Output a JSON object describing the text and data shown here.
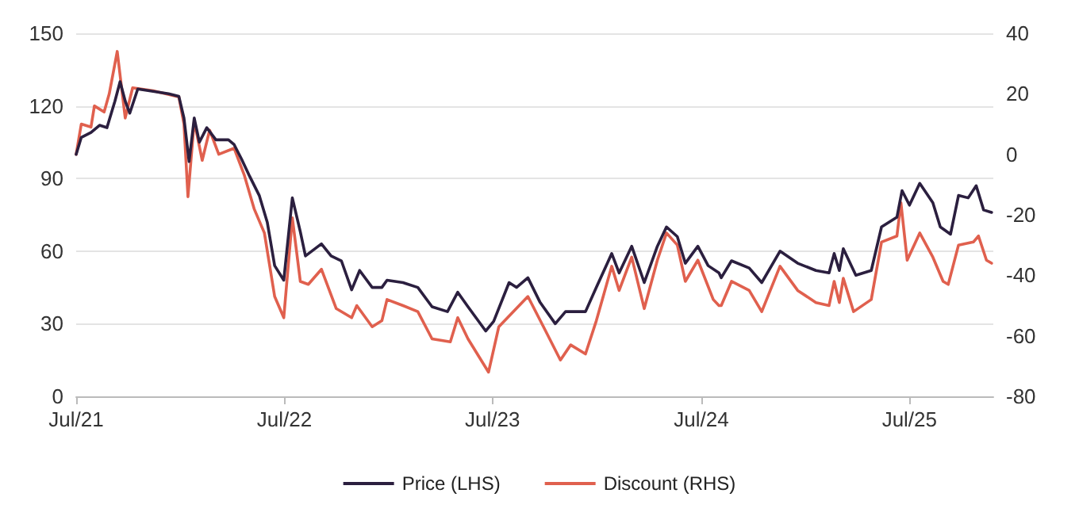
{
  "chart_data": {
    "type": "line",
    "xlim": [
      "2021-07-01",
      "2025-11-25"
    ],
    "xticks": [
      {
        "value": "2021-07-01",
        "label": "Jul/21"
      },
      {
        "value": "2022-07-01",
        "label": "Jul/22"
      },
      {
        "value": "2023-07-01",
        "label": "Jul/23"
      },
      {
        "value": "2024-07-01",
        "label": "Jul/24"
      },
      {
        "value": "2025-07-01",
        "label": "Jul/25"
      }
    ],
    "ylim": [
      0,
      150
    ],
    "yticks": [
      0,
      30,
      60,
      90,
      120,
      150
    ],
    "y2lim": [
      -80,
      40
    ],
    "y2ticks": [
      -80,
      -60,
      -40,
      -20,
      0,
      20,
      40
    ],
    "grid": "y",
    "legend": "bottom",
    "marker": "none",
    "line_style": "solid",
    "series": [
      {
        "name": "Price (LHS)",
        "color": "#2b1f3f",
        "x": [
          "2021-07-01",
          "2021-07-10",
          "2021-07-27",
          "2021-08-11",
          "2021-08-24",
          "2021-09-07",
          "2021-09-16",
          "2021-09-25",
          "2021-10-03",
          "2021-10-17",
          "2021-11-13",
          "2021-12-10",
          "2021-12-28",
          "2022-01-06",
          "2022-01-15",
          "2022-01-24",
          "2022-02-02",
          "2022-02-15",
          "2022-03-03",
          "2022-03-25",
          "2022-04-04",
          "2022-04-17",
          "2022-05-01",
          "2022-05-18",
          "2022-06-01",
          "2022-06-14",
          "2022-06-30",
          "2022-07-15",
          "2022-07-29",
          "2022-08-07",
          "2022-09-04",
          "2022-09-21",
          "2022-10-09",
          "2022-10-27",
          "2022-11-10",
          "2022-12-02",
          "2022-12-19",
          "2022-12-28",
          "2023-01-25",
          "2023-02-20",
          "2023-03-17",
          "2023-04-13",
          "2023-05-01",
          "2023-05-19",
          "2023-06-19",
          "2023-07-03",
          "2023-07-30",
          "2023-08-12",
          "2023-09-01",
          "2023-09-22",
          "2023-10-19",
          "2023-11-06",
          "2023-12-11",
          "2023-12-30",
          "2024-01-26",
          "2024-02-08",
          "2024-03-01",
          "2024-03-23",
          "2024-04-15",
          "2024-05-01",
          "2024-05-20",
          "2024-06-03",
          "2024-06-25",
          "2024-07-13",
          "2024-08-01",
          "2024-08-05",
          "2024-08-23",
          "2024-09-23",
          "2024-10-15",
          "2024-11-16",
          "2024-12-17",
          "2025-01-18",
          "2025-02-10",
          "2025-02-19",
          "2025-02-28",
          "2025-03-07",
          "2025-03-29",
          "2025-04-25",
          "2025-05-13",
          "2025-06-09",
          "2025-06-18",
          "2025-07-01",
          "2025-07-19",
          "2025-08-11",
          "2025-08-24",
          "2025-09-11",
          "2025-09-25",
          "2025-10-12",
          "2025-10-26",
          "2025-11-08",
          "2025-11-22"
        ],
        "values": [
          100,
          107,
          109,
          112,
          111,
          122,
          130,
          122,
          117,
          127,
          126,
          125,
          124,
          115,
          97,
          115,
          105,
          111,
          106,
          106,
          104,
          98,
          91,
          83,
          72,
          54,
          48,
          82,
          68,
          58,
          63,
          58,
          56,
          44,
          52,
          45,
          45,
          48,
          47,
          45,
          37,
          35,
          43,
          37,
          27,
          31,
          47,
          45,
          49,
          39,
          30,
          35,
          35,
          45,
          59,
          51,
          62,
          47,
          62,
          70,
          66,
          55,
          62,
          54,
          51,
          49,
          56,
          53,
          47,
          60,
          55,
          52,
          51,
          59,
          52,
          61,
          50,
          52,
          70,
          74,
          85,
          79,
          88,
          80,
          70,
          67,
          83,
          82,
          87,
          77,
          76
        ]
      },
      {
        "name": "Discount (RHS)",
        "color": "#e0604e",
        "axis": "y2",
        "x": [
          "2021-07-01",
          "2021-07-10",
          "2021-07-27",
          "2021-08-02",
          "2021-08-19",
          "2021-08-28",
          "2021-09-11",
          "2021-09-25",
          "2021-10-08",
          "2021-11-13",
          "2021-12-28",
          "2022-01-06",
          "2022-01-13",
          "2022-01-24",
          "2022-02-07",
          "2022-02-20",
          "2022-03-08",
          "2022-04-04",
          "2022-04-22",
          "2022-05-09",
          "2022-05-27",
          "2022-06-14",
          "2022-06-30",
          "2022-07-15",
          "2022-07-29",
          "2022-08-12",
          "2022-09-04",
          "2022-09-30",
          "2022-10-27",
          "2022-11-05",
          "2022-12-02",
          "2022-12-19",
          "2022-12-28",
          "2023-01-25",
          "2023-02-20",
          "2023-03-17",
          "2023-04-18",
          "2023-05-01",
          "2023-05-19",
          "2023-06-24",
          "2023-07-12",
          "2023-09-01",
          "2023-10-01",
          "2023-10-28",
          "2023-11-15",
          "2023-12-11",
          "2023-12-30",
          "2024-01-26",
          "2024-02-08",
          "2024-03-01",
          "2024-03-23",
          "2024-04-15",
          "2024-05-01",
          "2024-05-20",
          "2024-06-03",
          "2024-06-25",
          "2024-07-22",
          "2024-08-01",
          "2024-08-05",
          "2024-08-23",
          "2024-09-23",
          "2024-10-15",
          "2024-11-16",
          "2024-12-17",
          "2025-01-18",
          "2025-02-10",
          "2025-02-19",
          "2025-02-28",
          "2025-03-07",
          "2025-03-25",
          "2025-04-25",
          "2025-05-13",
          "2025-06-09",
          "2025-06-16",
          "2025-06-27",
          "2025-07-19",
          "2025-08-11",
          "2025-08-29",
          "2025-09-07",
          "2025-09-25",
          "2025-10-21",
          "2025-10-30",
          "2025-11-13",
          "2025-11-22"
        ],
        "values": [
          0,
          10,
          9,
          16,
          14,
          20,
          34,
          12,
          22,
          21,
          19,
          10,
          -14,
          11,
          -2,
          8,
          0,
          2,
          -7,
          -18,
          -26,
          -47,
          -54,
          -21,
          -42,
          -43,
          -38,
          -51,
          -54,
          -50,
          -57,
          -55,
          -48,
          -50,
          -52,
          -61,
          -62,
          -54,
          -61,
          -72,
          -57,
          -47,
          -58,
          -68,
          -63,
          -66,
          -55,
          -37,
          -45,
          -34,
          -51,
          -35,
          -26,
          -30,
          -42,
          -35,
          -48,
          -50,
          -50,
          -42,
          -45,
          -52,
          -37,
          -45,
          -49,
          -50,
          -42,
          -49,
          -41,
          -52,
          -48,
          -29,
          -27,
          -16,
          -35,
          -26,
          -34,
          -42,
          -43,
          -30,
          -29,
          -27,
          -35,
          -36
        ]
      }
    ]
  }
}
